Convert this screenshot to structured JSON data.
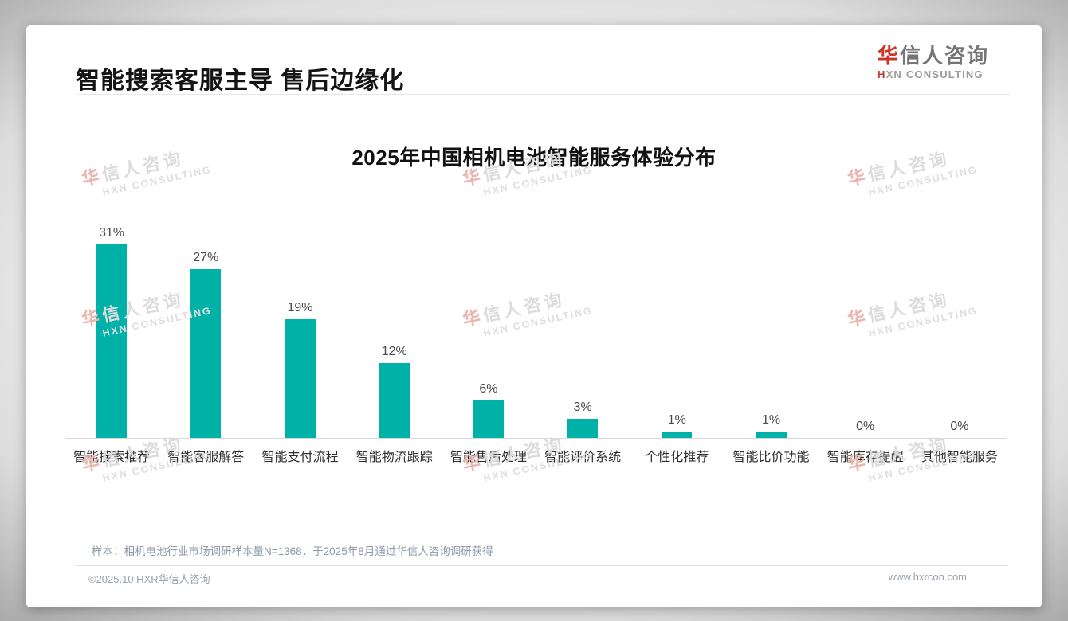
{
  "header": {
    "title": "智能搜索客服主导 售后边缘化"
  },
  "logo": {
    "cn_accent": "华",
    "cn_rest": "信人咨询",
    "en_accent": "H",
    "en_rest": "XN CONSULTING"
  },
  "chart_data": {
    "type": "bar",
    "title": "2025年中国相机电池智能服务体验分布",
    "categories": [
      "智能搜索推荐",
      "智能客服解答",
      "智能支付流程",
      "智能物流跟踪",
      "智能售后处理",
      "智能评价系统",
      "个性化推荐",
      "智能比价功能",
      "智能库存提醒",
      "其他智能服务"
    ],
    "values": [
      31,
      27,
      19,
      12,
      6,
      3,
      1,
      1,
      0,
      0
    ],
    "value_suffix": "%",
    "xlabel": "",
    "ylabel": "",
    "ylim": [
      0,
      33
    ],
    "grid": false,
    "legend": false,
    "bar_color": "#00b1a8"
  },
  "footnote": "样本：相机电池行业市场调研样本量N=1368，于2025年8月通过华信人咨询调研获得",
  "footer": {
    "copyright": "©2025.10 HXR华信人咨询",
    "website": "www.hxrcon.com"
  },
  "watermark": {
    "cn_accent": "华",
    "cn_rest": "信人咨询",
    "en": "HXN CONSULTING"
  },
  "colors": {
    "accent_teal": "#00b1a8",
    "logo_red": "#cf3325",
    "title_text": "#141414"
  }
}
